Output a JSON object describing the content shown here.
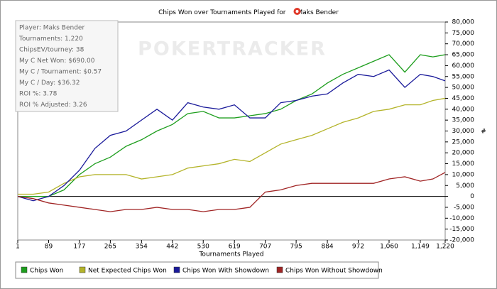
{
  "chart_data": {
    "type": "line",
    "title": "Chips Won over Tournaments Played for",
    "subject": "Maks Bender",
    "watermark": "POKERTRACKER",
    "info": [
      "Player: Maks Bender",
      "Tournaments: 1,220",
      "ChipsEV/tourney: 38",
      "My C Net Won: $690.00",
      "My C / Tournament: $0.57",
      "My C / Day: $36.32",
      "ROI %: 3.78",
      "ROI % Adjusted: 3.26"
    ],
    "xlabel": "Tournaments Played",
    "ylabel": "#",
    "x": [
      1,
      45,
      89,
      133,
      177,
      221,
      265,
      310,
      354,
      398,
      442,
      486,
      530,
      575,
      619,
      663,
      707,
      751,
      795,
      840,
      884,
      928,
      972,
      1016,
      1060,
      1105,
      1149,
      1185,
      1220
    ],
    "series": [
      {
        "name": "Chips Won",
        "color": "#1e9e1e",
        "values": [
          0,
          0,
          0,
          3000,
          10000,
          15000,
          18000,
          23000,
          26000,
          30000,
          33000,
          38000,
          39000,
          36000,
          36000,
          37000,
          38000,
          40000,
          44000,
          47000,
          52000,
          56000,
          59000,
          62000,
          65000,
          57000,
          65000,
          64000,
          65000
        ]
      },
      {
        "name": "Net Expected Chips Won",
        "color": "#b4b42a",
        "values": [
          1000,
          1000,
          2000,
          6000,
          9000,
          10000,
          10000,
          10000,
          8000,
          9000,
          10000,
          13000,
          14000,
          15000,
          17000,
          16000,
          20000,
          24000,
          26000,
          28000,
          31000,
          34000,
          36000,
          39000,
          40000,
          42000,
          42000,
          44000,
          45000
        ]
      },
      {
        "name": "Chips Won With Showdown",
        "color": "#1a1a9a",
        "values": [
          0,
          -2000,
          0,
          5000,
          12000,
          22000,
          28000,
          30000,
          35000,
          40000,
          35000,
          43000,
          41000,
          40000,
          42000,
          36000,
          36000,
          43000,
          44000,
          46000,
          47000,
          52000,
          56000,
          55000,
          58000,
          50000,
          56000,
          55000,
          53000
        ]
      },
      {
        "name": "Chips Won Without Showdown",
        "color": "#a02424",
        "values": [
          0,
          -1000,
          -3000,
          -4000,
          -5000,
          -6000,
          -7000,
          -6000,
          -6000,
          -5000,
          -6000,
          -6000,
          -7000,
          -6000,
          -6000,
          -5000,
          2000,
          3000,
          5000,
          6000,
          6000,
          6000,
          6000,
          6000,
          8000,
          9000,
          7000,
          8000,
          11000
        ]
      }
    ],
    "xlim": [
      1,
      1220
    ],
    "xticks": [
      1,
      89,
      177,
      265,
      354,
      442,
      530,
      619,
      707,
      795,
      884,
      972,
      {
        "value": 1060,
        "label": "1,060"
      },
      {
        "value": 1149,
        "label": "1,149"
      },
      {
        "value": 1220,
        "label": "1,220"
      }
    ],
    "ylim": [
      -20000,
      80000
    ],
    "yticks": [
      {
        "value": 80000,
        "label": "80,000"
      },
      {
        "value": 75000,
        "label": "75,000"
      },
      {
        "value": 70000,
        "label": "70,000"
      },
      {
        "value": 65000,
        "label": "65,000"
      },
      {
        "value": 60000,
        "label": "60,000"
      },
      {
        "value": 55000,
        "label": "55,000"
      },
      {
        "value": 50000,
        "label": "50,000"
      },
      {
        "value": 45000,
        "label": "45,000"
      },
      {
        "value": 40000,
        "label": "40,000"
      },
      {
        "value": 35000,
        "label": "35,000"
      },
      {
        "value": 30000,
        "label": "30,000"
      },
      {
        "value": 25000,
        "label": "25,000"
      },
      {
        "value": 20000,
        "label": "20,000"
      },
      {
        "value": 15000,
        "label": "15,000"
      },
      {
        "value": 10000,
        "label": "10,000"
      },
      {
        "value": 5000,
        "label": "5,000"
      },
      0,
      {
        "value": -5000,
        "label": "-5,000"
      },
      {
        "value": -10000,
        "label": "-10,000"
      },
      {
        "value": -15000,
        "label": "-15,000"
      },
      {
        "value": -20000,
        "label": "-20,000"
      }
    ],
    "legend": "bottom"
  }
}
